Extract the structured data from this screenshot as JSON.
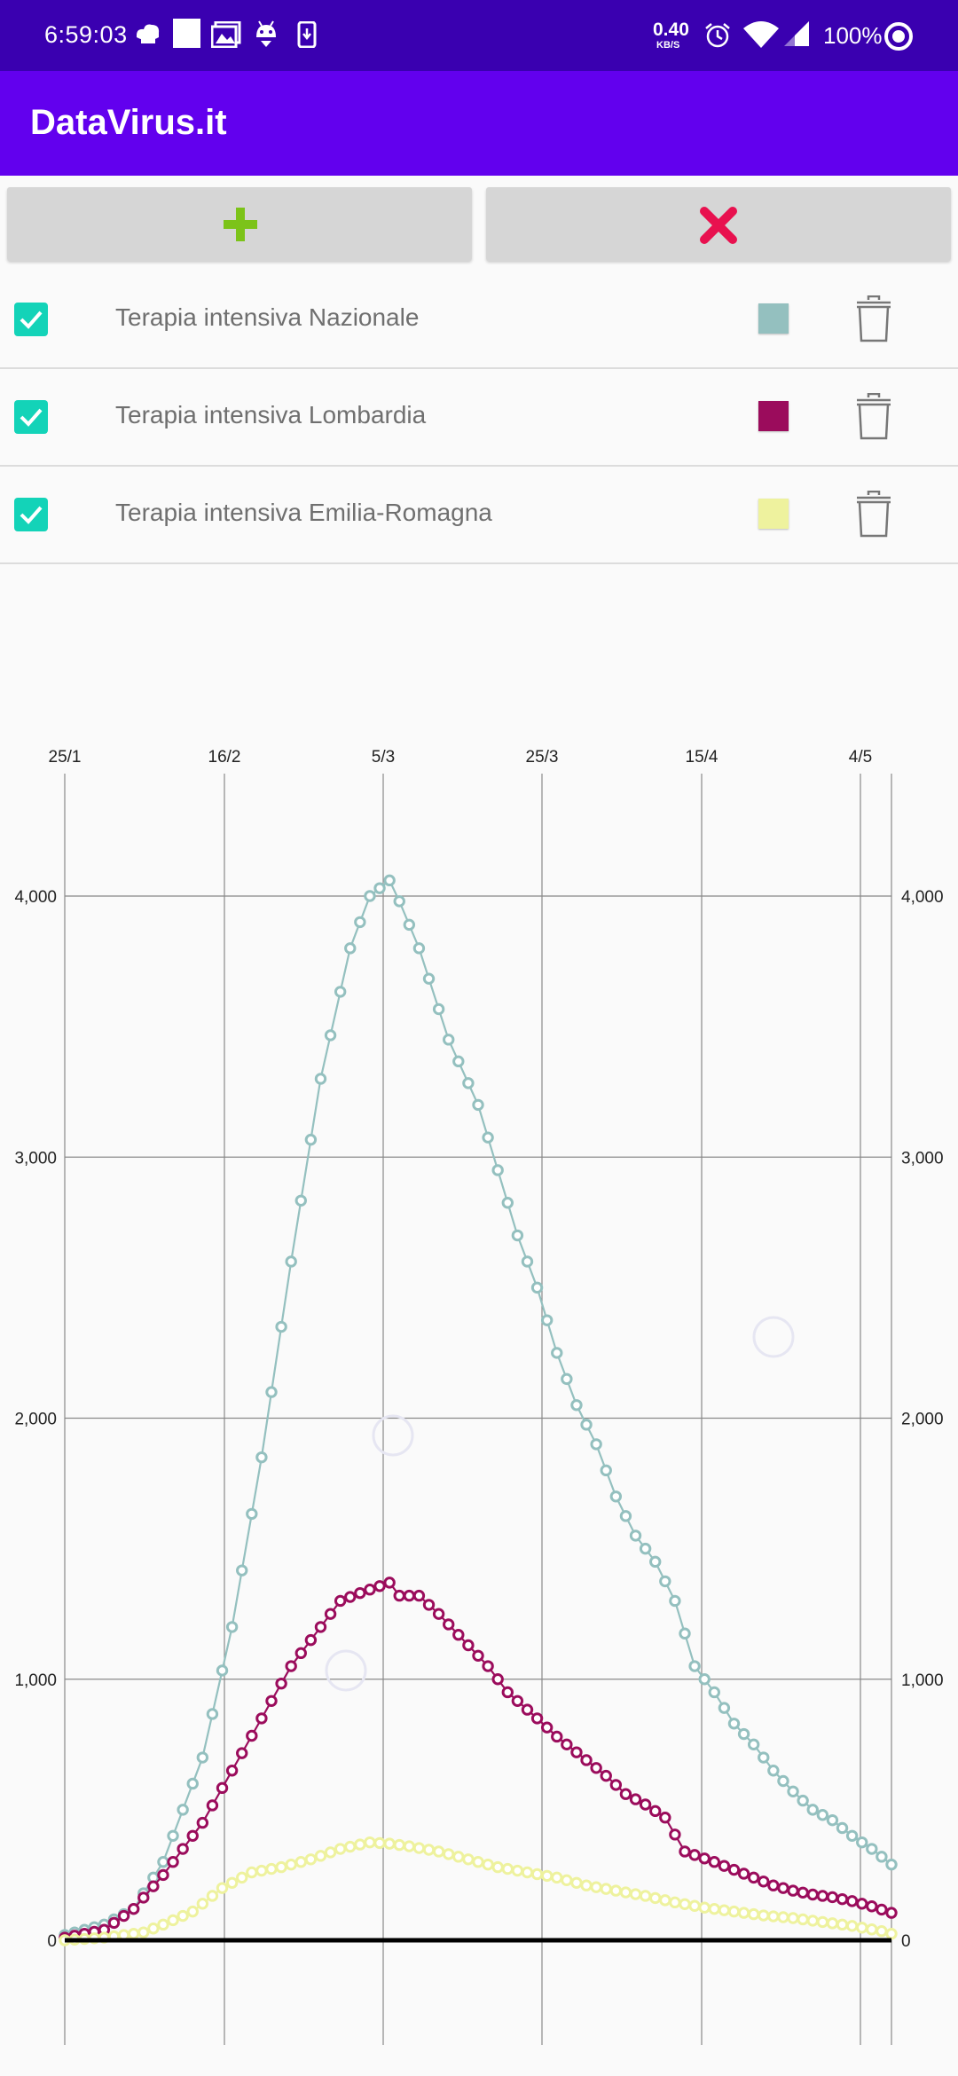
{
  "status_bar": {
    "time": "6:59:03",
    "net_speed": "0.40",
    "net_unit": "KB/S",
    "battery": "100%",
    "icons": [
      "chef-hat-icon",
      "square-icon",
      "gallery-icon",
      "android-head-icon",
      "download-icon",
      "alarm-icon",
      "wifi-icon",
      "signal-icon",
      "circle-icon"
    ]
  },
  "app_bar": {
    "title": "DataVirus.it"
  },
  "toolbar": {
    "add_icon": "plus-icon",
    "clear_icon": "close-icon",
    "add_color": "#7cc319",
    "clear_color": "#e8114f"
  },
  "series_list": [
    {
      "label": "Terapia intensiva Nazionale",
      "checked": true,
      "color": "#94c0bf"
    },
    {
      "label": "Terapia intensiva Lombardia",
      "checked": true,
      "color": "#9b0c5c"
    },
    {
      "label": "Terapia intensiva Emilia-Romagna",
      "checked": true,
      "color": "#eef29e"
    }
  ],
  "chart_data": {
    "type": "line",
    "x_tick_labels": [
      "25/1",
      "16/2",
      "5/3",
      "25/3",
      "15/4",
      "4/5"
    ],
    "y_tick_labels": [
      "0",
      "1,000",
      "2,000",
      "3,000",
      "4,000"
    ],
    "ylim": [
      -400,
      4450
    ],
    "x_start": "2020-02-24",
    "x_end": "2020-05-07",
    "grid": true,
    "series": [
      {
        "name": "Terapia intensiva Nazionale",
        "color": "#94c0bf",
        "keypoints": [
          [
            0,
            20
          ],
          [
            4,
            60
          ],
          [
            7,
            120
          ],
          [
            10,
            300
          ],
          [
            14,
            700
          ],
          [
            17,
            1200
          ],
          [
            20,
            1850
          ],
          [
            23,
            2600
          ],
          [
            26,
            3300
          ],
          [
            29,
            3800
          ],
          [
            31,
            4000
          ],
          [
            33,
            4060
          ],
          [
            34,
            3980
          ],
          [
            36,
            3800
          ],
          [
            39,
            3450
          ],
          [
            42,
            3200
          ],
          [
            44,
            2950
          ],
          [
            46,
            2700
          ],
          [
            48,
            2500
          ],
          [
            50,
            2250
          ],
          [
            52,
            2050
          ],
          [
            54,
            1900
          ],
          [
            56,
            1700
          ],
          [
            58,
            1550
          ],
          [
            60,
            1450
          ],
          [
            62,
            1300
          ],
          [
            64,
            1050
          ],
          [
            66,
            950
          ],
          [
            68,
            830
          ],
          [
            70,
            750
          ],
          [
            72,
            650
          ],
          [
            74,
            570
          ],
          [
            76,
            500
          ],
          [
            78,
            460
          ],
          [
            80,
            400
          ],
          [
            82,
            350
          ],
          [
            84,
            290
          ]
        ]
      },
      {
        "name": "Terapia intensiva Lombardia",
        "color": "#9b0c5c",
        "keypoints": [
          [
            0,
            10
          ],
          [
            4,
            40
          ],
          [
            7,
            120
          ],
          [
            10,
            250
          ],
          [
            14,
            450
          ],
          [
            17,
            650
          ],
          [
            20,
            850
          ],
          [
            23,
            1050
          ],
          [
            26,
            1200
          ],
          [
            28,
            1300
          ],
          [
            30,
            1330
          ],
          [
            33,
            1370
          ],
          [
            34,
            1320
          ],
          [
            36,
            1320
          ],
          [
            38,
            1250
          ],
          [
            40,
            1170
          ],
          [
            43,
            1050
          ],
          [
            45,
            950
          ],
          [
            48,
            850
          ],
          [
            50,
            780
          ],
          [
            52,
            720
          ],
          [
            55,
            630
          ],
          [
            57,
            560
          ],
          [
            59,
            520
          ],
          [
            61,
            470
          ],
          [
            63,
            340
          ],
          [
            66,
            300
          ],
          [
            68,
            270
          ],
          [
            70,
            240
          ],
          [
            72,
            210
          ],
          [
            74,
            190
          ],
          [
            76,
            175
          ],
          [
            78,
            165
          ],
          [
            80,
            150
          ],
          [
            82,
            130
          ],
          [
            84,
            105
          ]
        ]
      },
      {
        "name": "Terapia intensiva Emilia-Romagna",
        "color": "#eef29e",
        "keypoints": [
          [
            0,
            0
          ],
          [
            4,
            10
          ],
          [
            8,
            30
          ],
          [
            10,
            60
          ],
          [
            13,
            110
          ],
          [
            16,
            200
          ],
          [
            19,
            260
          ],
          [
            22,
            280
          ],
          [
            25,
            310
          ],
          [
            28,
            350
          ],
          [
            31,
            375
          ],
          [
            33,
            370
          ],
          [
            35,
            360
          ],
          [
            38,
            340
          ],
          [
            41,
            310
          ],
          [
            44,
            280
          ],
          [
            47,
            260
          ],
          [
            50,
            240
          ],
          [
            53,
            210
          ],
          [
            56,
            190
          ],
          [
            59,
            170
          ],
          [
            62,
            145
          ],
          [
            65,
            125
          ],
          [
            68,
            110
          ],
          [
            71,
            95
          ],
          [
            74,
            85
          ],
          [
            77,
            70
          ],
          [
            80,
            55
          ],
          [
            83,
            35
          ],
          [
            84,
            25
          ]
        ]
      }
    ],
    "baseline_color": "#000000"
  }
}
